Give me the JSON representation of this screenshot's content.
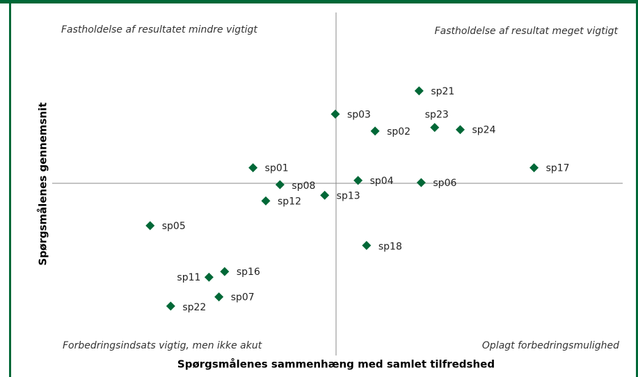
{
  "chart_data": {
    "type": "scatter",
    "x_label": "Spørgsmålenes sammenhæng med samlet tilfredshed",
    "y_label": "Spørgsmålenes gennemsnit",
    "annotations": [
      "Fastholdelse af resultatet mindre vigtigt",
      "Fastholdelse af resultat meget vigtigt",
      "Forbedringsindsats vigtig, men ikke akut",
      "Oplagt forbedringsmulighed"
    ],
    "labels": [
      "sp21",
      "sp03",
      "sp23",
      "sp02",
      "sp24",
      "sp01",
      "sp17",
      "sp04",
      "sp06",
      "sp08",
      "sp13",
      "sp12",
      "sp05",
      "sp18",
      "sp16",
      "sp11",
      "sp07",
      "sp22"
    ],
    "x": [
      1.17,
      -0.01,
      1.39,
      0.55,
      1.75,
      -1.17,
      2.79,
      0.31,
      1.2,
      -0.79,
      -0.16,
      -0.99,
      -2.62,
      0.43,
      -1.57,
      -1.79,
      -1.65,
      -2.33
    ],
    "values": [
      1.31,
      0.98,
      0.79,
      0.74,
      0.76,
      0.22,
      0.22,
      0.04,
      0.01,
      -0.02,
      -0.17,
      -0.25,
      -0.6,
      -0.88,
      -1.25,
      -1.33,
      -1.61,
      -1.74
    ],
    "color": "#006837",
    "xlim": [
      -4,
      4
    ],
    "ylim": [
      -2.4,
      2.4
    ],
    "reference_lines": {
      "x": 0,
      "y": 0
    }
  }
}
